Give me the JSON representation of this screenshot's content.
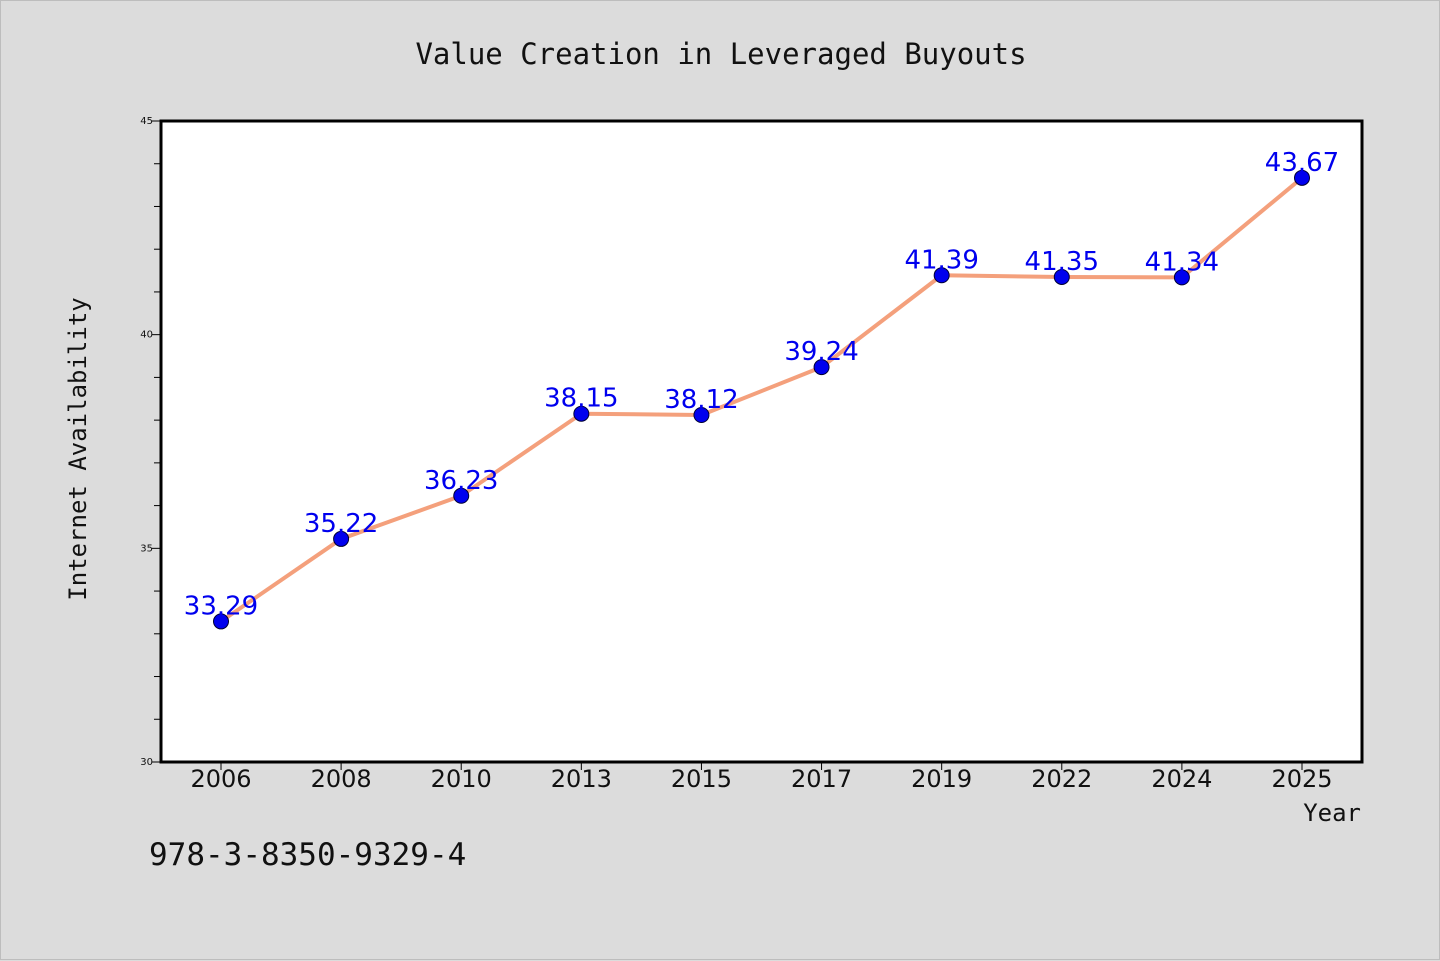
{
  "chart_data": {
    "type": "line",
    "title": "Value Creation in Leveraged Buyouts",
    "xlabel": "Year",
    "ylabel": "Internet Availability",
    "categories": [
      "2006",
      "2008",
      "2010",
      "2013",
      "2015",
      "2017",
      "2019",
      "2022",
      "2024",
      "2025"
    ],
    "series": [
      {
        "values": [
          33.29,
          35.22,
          36.23,
          38.15,
          38.12,
          39.24,
          41.39,
          41.35,
          41.34,
          43.67
        ],
        "labels": [
          "33.29",
          "35.22",
          "36.23",
          "38.15",
          "38.12",
          "39.24",
          "41.39",
          "41.35",
          "41.34",
          "43.67"
        ]
      }
    ],
    "ylim": [
      30,
      45
    ],
    "yticks": [
      30,
      35,
      40,
      45
    ],
    "ytick_labels": [
      "30",
      "35",
      "40",
      "45"
    ],
    "grid": false,
    "legend": "none",
    "colors": {
      "line": "#f4a07c",
      "marker": "#0000ee",
      "data_label": "#0000ee",
      "text": "#111111",
      "background": "#dcdcdc",
      "plot_background": "#ffffff"
    }
  },
  "annotation": "978-3-8350-9329-4"
}
